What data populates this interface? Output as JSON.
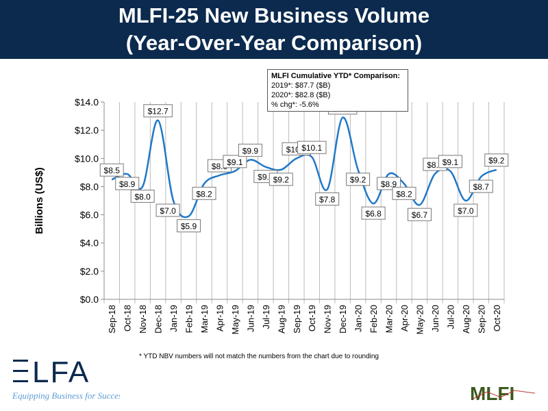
{
  "header": {
    "line1": "MLFI-25 New Business Volume",
    "line2": "(Year-Over-Year Comparison)"
  },
  "ytd_box": {
    "title": "MLFI Cumulative YTD* Comparison:",
    "line1": "2019*: $87.7 ($B)",
    "line2": "2020*: $82.8 ($B)",
    "line3": "% chg*:  -5.6%"
  },
  "footnote": "*  YTD NBV numbers will not match the numbers from the chart due to rounding",
  "logos": {
    "elfa": "ELFA",
    "elfa_tagline": "Equipping Business for Success",
    "mlfi": "MLFI"
  },
  "colors": {
    "header": "#0b2a4e",
    "line": "#1f78c8",
    "elfa": "#0b2a4e",
    "elfa_tagline": "#5b9bd5",
    "mlfi": "#3d5a1e"
  },
  "chart_data": {
    "type": "line",
    "title": "",
    "xlabel": "",
    "ylabel": "Billions (US$)",
    "ylim": [
      0,
      14
    ],
    "yticks": [
      "$0.0",
      "$2.0",
      "$4.0",
      "$6.0",
      "$8.0",
      "$10.0",
      "$12.0",
      "$14.0"
    ],
    "grid": "vertical",
    "smooth": true,
    "categories": [
      "Sep-18",
      "Oct-18",
      "Nov-18",
      "Dec-18",
      "Jan-19",
      "Feb-19",
      "Mar-19",
      "Apr-19",
      "May-19",
      "Jun-19",
      "Jul-19",
      "Aug-19",
      "Sep-19",
      "Oct-19",
      "Nov-19",
      "Dec-19",
      "Jan-20",
      "Feb-20",
      "Mar-20",
      "Apr-20",
      "May-20",
      "Jun-20",
      "Jul-20",
      "Aug-20",
      "Sep-20",
      "Oct-20"
    ],
    "values": [
      8.5,
      8.9,
      8.0,
      12.7,
      7.0,
      5.9,
      8.2,
      8.8,
      9.1,
      9.9,
      9.4,
      9.2,
      10.0,
      10.1,
      7.8,
      12.9,
      9.2,
      6.8,
      8.9,
      8.2,
      6.7,
      8.9,
      9.1,
      7.0,
      8.7,
      9.2
    ],
    "labels": [
      "$8.5",
      "$8.9",
      "$8.0",
      "$12.7",
      "$7.0",
      "$5.9",
      "$8.2",
      "$8.8",
      "$9.1",
      "$9.9",
      "$9.4",
      "$9.2",
      "$10.0",
      "$10.1",
      "$7.8",
      "$12.9",
      "$9.2",
      "$6.8",
      "$8.9",
      "$8.2",
      "$6.7",
      "$8.9",
      "$9.1",
      "$7.0",
      "$8.7",
      "$9.2"
    ]
  }
}
